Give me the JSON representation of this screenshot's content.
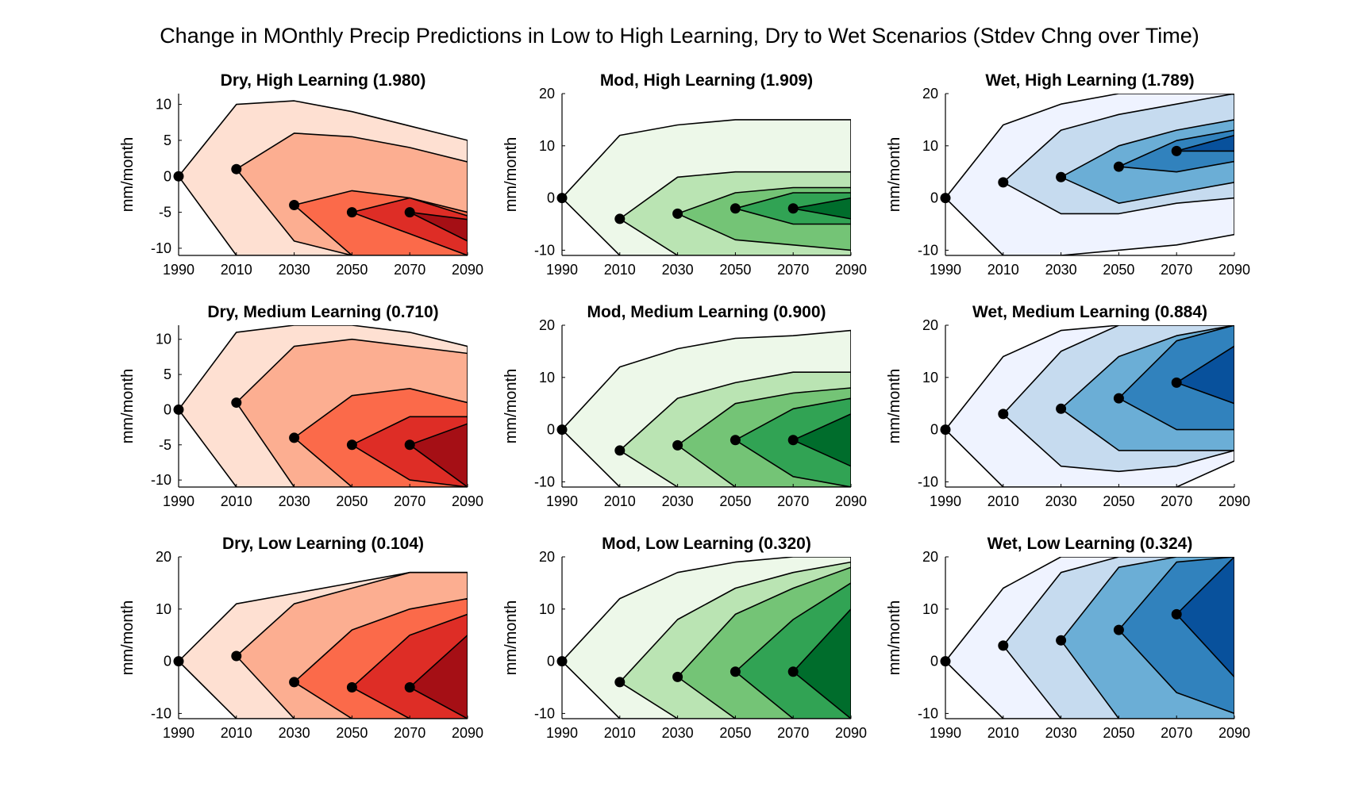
{
  "title": "Change in MOnthly Precip Predictions in Low to High Learning, Dry to Wet Scenarios (Stdev Chng over Time)",
  "ylabel": "mm/month",
  "palettes": {
    "red": [
      "#fee0d2",
      "#fcae91",
      "#fb6a4a",
      "#de2d26",
      "#a50f15"
    ],
    "green": [
      "#edf8e9",
      "#bae4b3",
      "#74c476",
      "#31a354",
      "#006d2c"
    ],
    "blue": [
      "#eff3ff",
      "#c6dbef",
      "#6baed6",
      "#3182bd",
      "#08519c"
    ]
  },
  "chart_data": [
    {
      "type": "area",
      "title": "Dry, High Learning (1.980)",
      "palette": "red",
      "x": [
        1990,
        2010,
        2030,
        2050,
        2070,
        2090
      ],
      "ylim": [
        -11,
        11.5
      ],
      "yticks": [
        -10,
        -5,
        0,
        5,
        10
      ],
      "nodes": [
        {
          "x": 1990,
          "y": 0
        },
        {
          "x": 2010,
          "y": 1
        },
        {
          "x": 2030,
          "y": -4
        },
        {
          "x": 2050,
          "y": -5
        },
        {
          "x": 2070,
          "y": -5
        }
      ],
      "bands": [
        {
          "upper": [
            10,
            10.5,
            9,
            7,
            5
          ],
          "lower": [
            -11,
            -11,
            -11,
            -11,
            -11
          ]
        },
        {
          "upper": [
            6,
            5.5,
            4,
            2
          ],
          "lower": [
            -9,
            -11,
            -11,
            -11
          ]
        },
        {
          "upper": [
            -2,
            -3,
            -5
          ],
          "lower": [
            -11,
            -11,
            -11
          ]
        },
        {
          "upper": [
            -3,
            -5.5
          ],
          "lower": [
            -8,
            -11
          ]
        },
        {
          "upper": [
            -6
          ],
          "lower": [
            -9
          ]
        }
      ]
    },
    {
      "type": "area",
      "title": "Mod, High Learning (1.909)",
      "palette": "green",
      "x": [
        1990,
        2010,
        2030,
        2050,
        2070,
        2090
      ],
      "ylim": [
        -11,
        20
      ],
      "yticks": [
        -10,
        0,
        10,
        20
      ],
      "nodes": [
        {
          "x": 1990,
          "y": 0
        },
        {
          "x": 2010,
          "y": -4
        },
        {
          "x": 2030,
          "y": -3
        },
        {
          "x": 2050,
          "y": -2
        },
        {
          "x": 2070,
          "y": -2
        }
      ],
      "bands": [
        {
          "upper": [
            12,
            14,
            15,
            15,
            15
          ],
          "lower": [
            -11,
            -11,
            -11,
            -11,
            -11
          ]
        },
        {
          "upper": [
            4,
            5,
            5,
            5
          ],
          "lower": [
            -11,
            -11,
            -11,
            -11
          ]
        },
        {
          "upper": [
            1,
            2,
            2
          ],
          "lower": [
            -8,
            -9,
            -10
          ]
        },
        {
          "upper": [
            1,
            1
          ],
          "lower": [
            -5,
            -5
          ]
        },
        {
          "upper": [
            0
          ],
          "lower": [
            -4
          ]
        }
      ]
    },
    {
      "type": "area",
      "title": "Wet, High Learning (1.789)",
      "palette": "blue",
      "x": [
        1990,
        2010,
        2030,
        2050,
        2070,
        2090
      ],
      "ylim": [
        -11,
        20
      ],
      "yticks": [
        -10,
        0,
        10,
        20
      ],
      "nodes": [
        {
          "x": 1990,
          "y": 0
        },
        {
          "x": 2010,
          "y": 3
        },
        {
          "x": 2030,
          "y": 4
        },
        {
          "x": 2050,
          "y": 6
        },
        {
          "x": 2070,
          "y": 9
        }
      ],
      "bands": [
        {
          "upper": [
            14,
            18,
            20,
            20,
            20
          ],
          "lower": [
            -11,
            -11,
            -10,
            -9,
            -7
          ]
        },
        {
          "upper": [
            13,
            16,
            18,
            20
          ],
          "lower": [
            -3,
            -3,
            -1,
            0
          ]
        },
        {
          "upper": [
            10,
            13,
            15
          ],
          "lower": [
            -1,
            1,
            3
          ]
        },
        {
          "upper": [
            11,
            13
          ],
          "lower": [
            5,
            7
          ]
        },
        {
          "upper": [
            12
          ],
          "lower": [
            9
          ]
        }
      ]
    },
    {
      "type": "area",
      "title": "Dry, Medium Learning (0.710)",
      "palette": "red",
      "x": [
        1990,
        2010,
        2030,
        2050,
        2070,
        2090
      ],
      "ylim": [
        -11,
        12
      ],
      "yticks": [
        -10,
        -5,
        0,
        5,
        10
      ],
      "nodes": [
        {
          "x": 1990,
          "y": 0
        },
        {
          "x": 2010,
          "y": 1
        },
        {
          "x": 2030,
          "y": -4
        },
        {
          "x": 2050,
          "y": -5
        },
        {
          "x": 2070,
          "y": -5
        }
      ],
      "bands": [
        {
          "upper": [
            11,
            12,
            12,
            11,
            9
          ],
          "lower": [
            -11,
            -11,
            -11,
            -11,
            -11
          ]
        },
        {
          "upper": [
            9,
            10,
            9,
            8
          ],
          "lower": [
            -11,
            -11,
            -11,
            -11
          ]
        },
        {
          "upper": [
            2,
            3,
            1
          ],
          "lower": [
            -11,
            -11,
            -11
          ]
        },
        {
          "upper": [
            -1,
            -1
          ],
          "lower": [
            -10,
            -11
          ]
        },
        {
          "upper": [
            -2
          ],
          "lower": [
            -11
          ]
        }
      ]
    },
    {
      "type": "area",
      "title": "Mod, Medium Learning (0.900)",
      "palette": "green",
      "x": [
        1990,
        2010,
        2030,
        2050,
        2070,
        2090
      ],
      "ylim": [
        -11,
        20
      ],
      "yticks": [
        -10,
        0,
        10,
        20
      ],
      "nodes": [
        {
          "x": 1990,
          "y": 0
        },
        {
          "x": 2010,
          "y": -4
        },
        {
          "x": 2030,
          "y": -3
        },
        {
          "x": 2050,
          "y": -2
        },
        {
          "x": 2070,
          "y": -2
        }
      ],
      "bands": [
        {
          "upper": [
            12,
            15.5,
            17.5,
            18,
            19
          ],
          "lower": [
            -11,
            -11,
            -11,
            -11,
            -11
          ]
        },
        {
          "upper": [
            6,
            9,
            11,
            11
          ],
          "lower": [
            -11,
            -11,
            -11,
            -11
          ]
        },
        {
          "upper": [
            5,
            7,
            8
          ],
          "lower": [
            -11,
            -11,
            -11
          ]
        },
        {
          "upper": [
            4,
            6
          ],
          "lower": [
            -9,
            -11
          ]
        },
        {
          "upper": [
            3
          ],
          "lower": [
            -7
          ]
        }
      ]
    },
    {
      "type": "area",
      "title": "Wet, Medium Learning (0.884)",
      "palette": "blue",
      "x": [
        1990,
        2010,
        2030,
        2050,
        2070,
        2090
      ],
      "ylim": [
        -11,
        20
      ],
      "yticks": [
        -10,
        0,
        10,
        20
      ],
      "nodes": [
        {
          "x": 1990,
          "y": 0
        },
        {
          "x": 2010,
          "y": 3
        },
        {
          "x": 2030,
          "y": 4
        },
        {
          "x": 2050,
          "y": 6
        },
        {
          "x": 2070,
          "y": 9
        }
      ],
      "bands": [
        {
          "upper": [
            14,
            19,
            20,
            20,
            20
          ],
          "lower": [
            -11,
            -11,
            -11,
            -11,
            -6
          ]
        },
        {
          "upper": [
            15,
            20,
            20,
            20
          ],
          "lower": [
            -7,
            -8,
            -7,
            -4
          ]
        },
        {
          "upper": [
            14,
            18,
            20
          ],
          "lower": [
            -4,
            -4,
            -4
          ]
        },
        {
          "upper": [
            17,
            20
          ],
          "lower": [
            0,
            0
          ]
        },
        {
          "upper": [
            16
          ],
          "lower": [
            5
          ]
        }
      ]
    },
    {
      "type": "area",
      "title": "Dry, Low Learning (0.104)",
      "palette": "red",
      "x": [
        1990,
        2010,
        2030,
        2050,
        2070,
        2090
      ],
      "ylim": [
        -11,
        20
      ],
      "yticks": [
        -10,
        0,
        10,
        20
      ],
      "nodes": [
        {
          "x": 1990,
          "y": 0
        },
        {
          "x": 2010,
          "y": 1
        },
        {
          "x": 2030,
          "y": -4
        },
        {
          "x": 2050,
          "y": -5
        },
        {
          "x": 2070,
          "y": -5
        }
      ],
      "bands": [
        {
          "upper": [
            11,
            13,
            15,
            17,
            17
          ],
          "lower": [
            -11,
            -11,
            -11,
            -11,
            -11
          ]
        },
        {
          "upper": [
            11,
            14,
            17,
            17
          ],
          "lower": [
            -11,
            -11,
            -11,
            -11
          ]
        },
        {
          "upper": [
            6,
            10,
            12
          ],
          "lower": [
            -11,
            -11,
            -11
          ]
        },
        {
          "upper": [
            5,
            9
          ],
          "lower": [
            -11,
            -11
          ]
        },
        {
          "upper": [
            5
          ],
          "lower": [
            -11
          ]
        }
      ]
    },
    {
      "type": "area",
      "title": "Mod, Low Learning (0.320)",
      "palette": "green",
      "x": [
        1990,
        2010,
        2030,
        2050,
        2070,
        2090
      ],
      "ylim": [
        -11,
        20
      ],
      "yticks": [
        -10,
        0,
        10,
        20
      ],
      "nodes": [
        {
          "x": 1990,
          "y": 0
        },
        {
          "x": 2010,
          "y": -4
        },
        {
          "x": 2030,
          "y": -3
        },
        {
          "x": 2050,
          "y": -2
        },
        {
          "x": 2070,
          "y": -2
        }
      ],
      "bands": [
        {
          "upper": [
            12,
            17,
            19,
            20,
            20
          ],
          "lower": [
            -11,
            -11,
            -11,
            -11,
            -11
          ]
        },
        {
          "upper": [
            8,
            14,
            17,
            19
          ],
          "lower": [
            -11,
            -11,
            -11,
            -11
          ]
        },
        {
          "upper": [
            9,
            14,
            18
          ],
          "lower": [
            -11,
            -11,
            -11
          ]
        },
        {
          "upper": [
            8,
            15
          ],
          "lower": [
            -11,
            -11
          ]
        },
        {
          "upper": [
            10
          ],
          "lower": [
            -11
          ]
        }
      ]
    },
    {
      "type": "area",
      "title": "Wet, Low Learning (0.324)",
      "palette": "blue",
      "x": [
        1990,
        2010,
        2030,
        2050,
        2070,
        2090
      ],
      "ylim": [
        -11,
        20
      ],
      "yticks": [
        -10,
        0,
        10,
        20
      ],
      "nodes": [
        {
          "x": 1990,
          "y": 0
        },
        {
          "x": 2010,
          "y": 3
        },
        {
          "x": 2030,
          "y": 4
        },
        {
          "x": 2050,
          "y": 6
        },
        {
          "x": 2070,
          "y": 9
        }
      ],
      "bands": [
        {
          "upper": [
            14,
            20,
            20,
            20,
            20
          ],
          "lower": [
            -11,
            -11,
            -11,
            -11,
            -11
          ]
        },
        {
          "upper": [
            17,
            20,
            20,
            20
          ],
          "lower": [
            -11,
            -11,
            -11,
            -11
          ]
        },
        {
          "upper": [
            18,
            20,
            20
          ],
          "lower": [
            -11,
            -11,
            -11
          ]
        },
        {
          "upper": [
            19,
            20
          ],
          "lower": [
            -6,
            -10
          ]
        },
        {
          "upper": [
            20
          ],
          "lower": [
            -3
          ]
        }
      ]
    }
  ]
}
